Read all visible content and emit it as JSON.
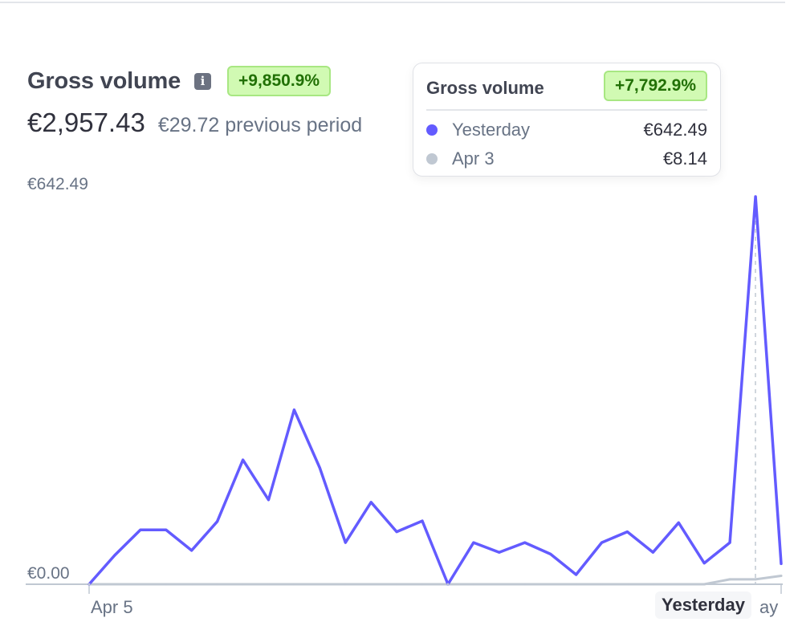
{
  "header": {
    "title": "Gross volume",
    "change_badge": "+9,850.9%",
    "total_value": "€2,957.43",
    "previous_period": "€29.72 previous period"
  },
  "icons": {
    "info": "info-icon"
  },
  "tooltip": {
    "title": "Gross volume",
    "change_badge": "+7,792.9%",
    "rows": [
      {
        "label": "Yesterday",
        "value": "€642.49",
        "color": "#635bff"
      },
      {
        "label": "Apr 3",
        "value": "€8.14",
        "color": "#c0c8d2"
      }
    ]
  },
  "colors": {
    "current": "#635bff",
    "previous": "#c0c8d2",
    "badge_bg": "#d1fab3",
    "badge_text": "#217005"
  },
  "chart_data": {
    "type": "line",
    "title": "Gross volume",
    "y_tick_labels": [
      "€642.49",
      "€0.00"
    ],
    "ylim": [
      0,
      642.49
    ],
    "x_tick_labels": [
      "Apr 5",
      "Yesterday",
      "ay"
    ],
    "grid": false,
    "series": [
      {
        "values": [
          0,
          48,
          90,
          90,
          56,
          104,
          206,
          140,
          289,
          193,
          69,
          136,
          87,
          105,
          0,
          69,
          53,
          69,
          50,
          16,
          69,
          87,
          53,
          102,
          35,
          69,
          642.49,
          34
        ]
      },
      {
        "values": [
          0,
          0,
          0,
          0,
          0,
          0,
          0,
          0,
          0,
          0,
          0,
          0,
          0,
          0,
          0,
          0,
          0,
          0,
          0,
          0,
          0,
          0,
          0,
          0,
          0,
          8.14,
          8.14,
          14
        ]
      }
    ]
  }
}
